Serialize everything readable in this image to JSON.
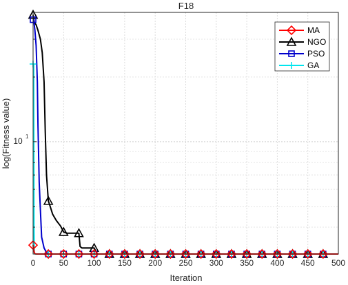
{
  "chart_data": {
    "type": "line",
    "title": "F18",
    "xlabel": "Iteration",
    "ylabel": "log(Fitness value)",
    "xlim": [
      0,
      500
    ],
    "ylim": [
      3,
      40
    ],
    "yscale": "log",
    "grid": true,
    "legend_position": "top-right",
    "x_ticks": [
      0,
      50,
      100,
      150,
      200,
      250,
      300,
      350,
      400,
      450,
      500
    ],
    "x_tick_labels": [
      "0",
      "50",
      "100",
      "150",
      "200",
      "250",
      "300",
      "350",
      "400",
      "450",
      "500"
    ],
    "y_major_ticks": [
      10
    ],
    "y_major_label": "10",
    "y_major_label_exponent": "1",
    "y_minor_ticks": [
      4,
      5,
      6,
      7,
      8,
      9,
      20,
      30
    ],
    "marker_x": [
      0,
      25,
      50,
      75,
      100,
      125,
      150,
      175,
      200,
      225,
      250,
      275,
      300,
      325,
      350,
      375,
      400,
      425,
      450,
      475
    ],
    "series": [
      {
        "name": "MA",
        "color": "#ff0000",
        "marker": "diamond",
        "x": [
          0,
          1,
          2,
          3,
          5,
          500
        ],
        "y": [
          3.3,
          3.15,
          3.05,
          3.01,
          3.0,
          3.0
        ]
      },
      {
        "name": "NGO",
        "color": "#000000",
        "marker": "triangle",
        "x": [
          0,
          2,
          5,
          8,
          12,
          15,
          18,
          20,
          22,
          25,
          28,
          32,
          38,
          45,
          50,
          55,
          65,
          75,
          77,
          80,
          90,
          100,
          105,
          500
        ],
        "y": [
          39,
          36,
          35,
          33,
          30,
          26,
          19,
          11,
          7,
          5.3,
          5.0,
          4.6,
          4.3,
          4.05,
          3.8,
          3.75,
          3.75,
          3.75,
          3.25,
          3.2,
          3.2,
          3.2,
          3.0,
          3.0
        ]
      },
      {
        "name": "PSO",
        "color": "#0000cc",
        "marker": "square",
        "x": [
          0,
          1,
          3,
          5,
          7,
          8,
          10,
          12,
          14,
          18,
          22,
          25,
          500
        ],
        "y": [
          37,
          37,
          33,
          28,
          19,
          12,
          6.5,
          4.8,
          3.6,
          3.2,
          3.05,
          3.0,
          3.0
        ]
      },
      {
        "name": "GA",
        "color": "#00e5ee",
        "marker": "plus",
        "x": [
          0,
          1,
          1.5,
          2,
          3,
          500
        ],
        "y": [
          23,
          23,
          4.0,
          3.05,
          3.0,
          3.0
        ]
      }
    ]
  }
}
